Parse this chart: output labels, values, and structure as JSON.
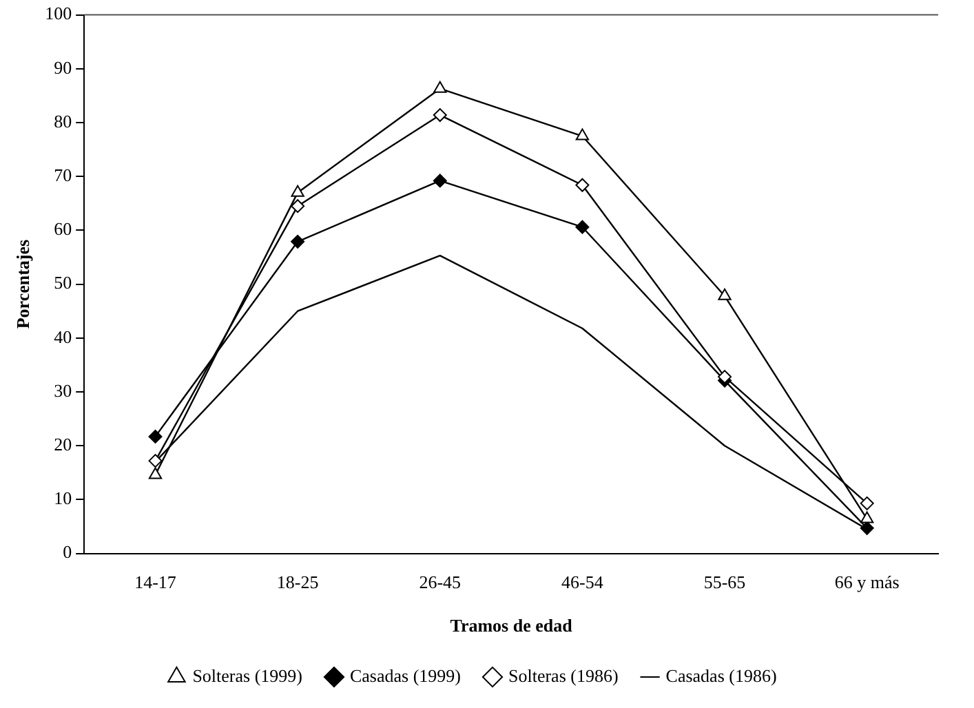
{
  "chart_data": {
    "type": "line",
    "xlabel": "Tramos de edad",
    "ylabel": "Porcentajes",
    "categories": [
      "14-17",
      "18-25",
      "26-45",
      "46-54",
      "55-65",
      "66 y más"
    ],
    "ylim": [
      0,
      100
    ],
    "yticks": [
      0,
      10,
      20,
      30,
      40,
      50,
      60,
      70,
      80,
      90,
      100
    ],
    "grid": false,
    "legend": "bottom",
    "series": [
      {
        "name": "Solteras (1999)",
        "color": "#000000",
        "marker": "triangle",
        "values": [
          14.6,
          67,
          86.3,
          77.5,
          47.8,
          6.4
        ]
      },
      {
        "name": "Casadas (1999)",
        "color": "#000000",
        "marker": "diamond",
        "values": [
          21.7,
          57.9,
          69.2,
          60.6,
          32.1,
          4.7
        ]
      },
      {
        "name": "Solteras (1986)",
        "color": "#000000",
        "marker": "diamond",
        "values": [
          17.2,
          64.5,
          81.4,
          68.4,
          32.8,
          9.3
        ]
      },
      {
        "name": "Casadas (1986)",
        "color": "#000000",
        "marker": "none",
        "values": [
          17,
          45,
          55.3,
          41.8,
          20,
          4.5
        ]
      }
    ]
  }
}
